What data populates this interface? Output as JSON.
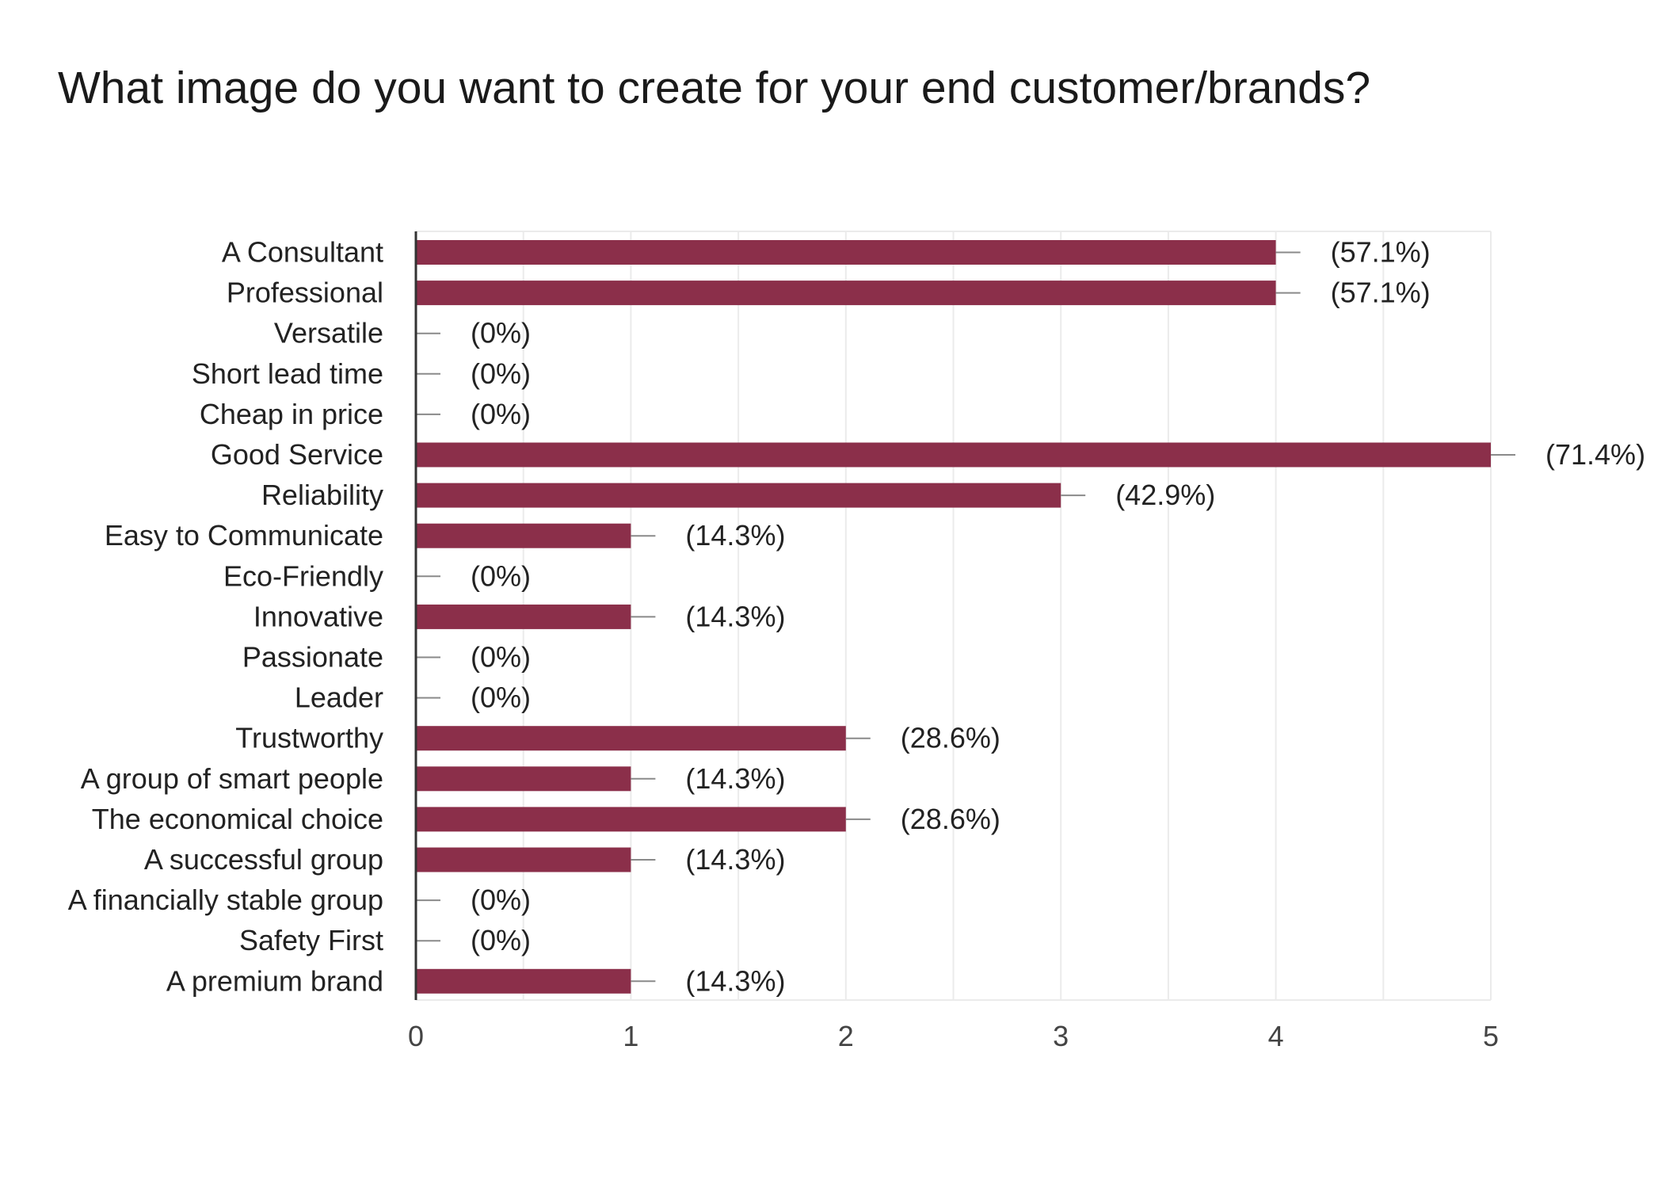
{
  "chart_data": {
    "type": "bar",
    "orientation": "horizontal",
    "title": "What image do you want to create for your end customer/brands?",
    "xlabel": "",
    "ylabel": "",
    "xlim": [
      0,
      5
    ],
    "ticks": [
      0,
      1,
      2,
      3,
      4,
      5
    ],
    "tick_labels": [
      "0",
      "1",
      "2",
      "3",
      "4",
      "5"
    ],
    "grid": true,
    "legend": "none",
    "bar_color": "#8b2f4a",
    "categories": [
      "A Consultant",
      "Professional",
      "Versatile",
      "Short lead time",
      "Cheap in price",
      "Good Service",
      "Reliability",
      "Easy to Communicate",
      "Eco-Friendly",
      "Innovative",
      "Passionate",
      "Leader",
      "Trustworthy",
      "A group of smart people",
      "The economical choice",
      "A successful group",
      "A financially stable group",
      "Safety First",
      "A premium brand"
    ],
    "values": [
      4,
      4,
      0,
      0,
      0,
      5,
      3,
      1,
      0,
      1,
      0,
      0,
      2,
      1,
      2,
      1,
      0,
      0,
      1
    ],
    "data_labels": [
      "(57.1%)",
      "(57.1%)",
      "(0%)",
      "(0%)",
      "(0%)",
      "(71.4%)",
      "(42.9%)",
      "(14.3%)",
      "(0%)",
      "(14.3%)",
      "(0%)",
      "(0%)",
      "(28.6%)",
      "(14.3%)",
      "(28.6%)",
      "(14.3%)",
      "(0%)",
      "(0%)",
      "(14.3%)"
    ]
  }
}
